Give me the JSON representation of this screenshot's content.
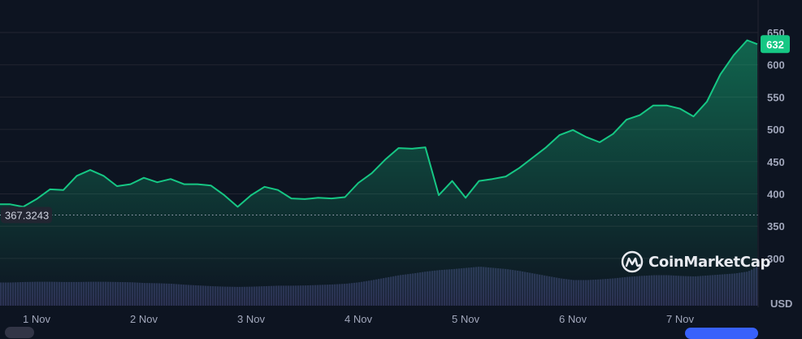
{
  "chart_data": {
    "type": "line",
    "title": "",
    "xlabel": "",
    "ylabel": "USD",
    "ylim": [
      260,
      665
    ],
    "y_ticks": [
      "300",
      "350",
      "400",
      "450",
      "500",
      "550",
      "600",
      "650"
    ],
    "x_ticks": [
      "1 Nov",
      "2 Nov",
      "3 Nov",
      "4 Nov",
      "5 Nov",
      "6 Nov",
      "7 Nov"
    ],
    "grid": true,
    "colors": {
      "line": "#16c784",
      "background": "#0d1421",
      "volume": "#2b3152",
      "price_badge": "#16c784"
    },
    "current_price_label": "632",
    "reference_line": {
      "value": 367.3243,
      "label": "367.3243",
      "style": "dotted"
    },
    "watermark": "CoinMarketCap",
    "series": [
      {
        "x_start": "31 Oct 18:00",
        "x_step_hours": 3,
        "values": [
          384,
          380,
          392,
          407,
          406,
          428,
          437,
          428,
          412,
          415,
          425,
          418,
          423,
          415,
          415,
          413,
          398,
          380,
          398,
          411,
          406,
          393,
          392,
          394,
          393,
          395,
          417,
          432,
          453,
          471,
          470,
          472,
          398,
          420,
          394,
          420,
          423,
          427,
          440,
          456,
          472,
          491,
          499,
          488,
          480,
          493,
          515,
          522,
          537,
          537,
          532,
          520,
          543,
          585,
          615,
          638,
          632
        ]
      }
    ],
    "volume_relative": [
      0.95,
      0.97,
      0.98,
      0.98,
      0.97,
      0.97,
      0.98,
      0.98,
      0.97,
      0.96,
      0.93,
      0.92,
      0.9,
      0.86,
      0.83,
      0.8,
      0.78,
      0.77,
      0.78,
      0.8,
      0.82,
      0.82,
      0.83,
      0.85,
      0.87,
      0.9,
      0.96,
      1.05,
      1.15,
      1.25,
      1.32,
      1.4,
      1.46,
      1.5,
      1.55,
      1.6,
      1.55,
      1.5,
      1.42,
      1.32,
      1.22,
      1.12,
      1.05,
      1.05,
      1.08,
      1.12,
      1.18,
      1.22,
      1.25,
      1.25,
      1.22,
      1.2,
      1.24,
      1.28,
      1.32,
      1.4,
      1.7
    ]
  }
}
